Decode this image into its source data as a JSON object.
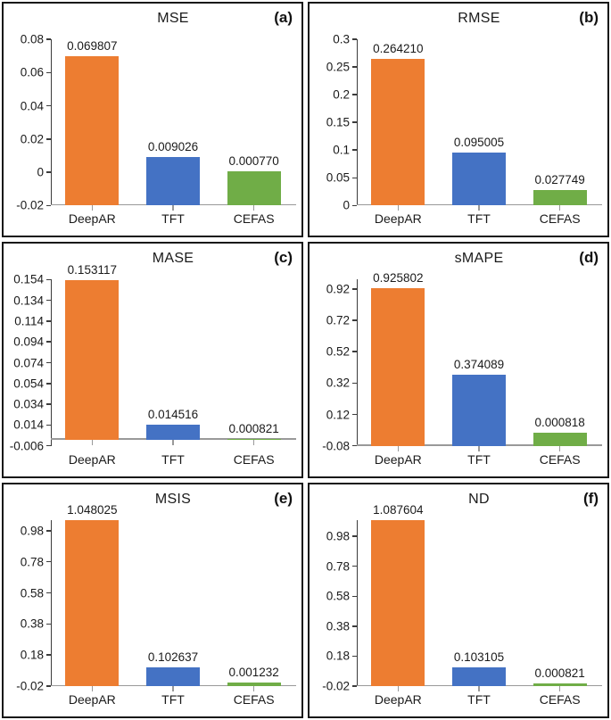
{
  "figure": {
    "background": "#ffffff",
    "panel_border_color": "#161616",
    "text_color": "#1a1a1a",
    "y_axis_color": "#3c3c3c",
    "x_axis_color": "#999999",
    "categories": [
      "DeepAR",
      "TFT",
      "CEFAS"
    ],
    "bar_colors": [
      "#ED7D31",
      "#4472C4",
      "#70AD47"
    ]
  },
  "chart_data": [
    {
      "type": "bar",
      "panel_label": "(a)",
      "title": "MSE",
      "categories": [
        "DeepAR",
        "TFT",
        "CEFAS"
      ],
      "values": [
        0.069807,
        0.009026,
        0.00077
      ],
      "bar_labels": [
        "0.069807",
        "0.009026",
        "0.000770"
      ],
      "ylim": [
        -0.02,
        0.08
      ],
      "baseline": -0.02,
      "yticks": [
        -0.02,
        0,
        0.02,
        0.04,
        0.06,
        0.08
      ],
      "ytick_labels": [
        "-0.02",
        "0",
        "0.02",
        "0.04",
        "0.06",
        "0.08"
      ],
      "grid": false,
      "legend": false
    },
    {
      "type": "bar",
      "panel_label": "(b)",
      "title": "RMSE",
      "categories": [
        "DeepAR",
        "TFT",
        "CEFAS"
      ],
      "values": [
        0.26421,
        0.095005,
        0.027749
      ],
      "bar_labels": [
        "0.264210",
        "0.095005",
        "0.027749"
      ],
      "ylim": [
        0,
        0.3
      ],
      "baseline": 0,
      "yticks": [
        0,
        0.05,
        0.1,
        0.15,
        0.2,
        0.25,
        0.3
      ],
      "ytick_labels": [
        "0",
        "0.05",
        "0.1",
        "0.15",
        "0.2",
        "0.25",
        "0.3"
      ],
      "grid": false,
      "legend": false
    },
    {
      "type": "bar",
      "panel_label": "(c)",
      "title": "MASE",
      "categories": [
        "DeepAR",
        "TFT",
        "CEFAS"
      ],
      "values": [
        0.153117,
        0.014516,
        0.000821
      ],
      "bar_labels": [
        "0.153117",
        "0.014516",
        "0.000821"
      ],
      "ylim": [
        -0.006,
        0.154
      ],
      "baseline": 0,
      "yticks": [
        -0.006,
        0.014,
        0.034,
        0.054,
        0.074,
        0.094,
        0.114,
        0.134,
        0.154
      ],
      "ytick_labels": [
        "-0.006",
        "0.014",
        "0.034",
        "0.054",
        "0.074",
        "0.094",
        "0.114",
        "0.134",
        "0.154"
      ],
      "grid": false,
      "legend": false
    },
    {
      "type": "bar",
      "panel_label": "(d)",
      "title": "sMAPE",
      "categories": [
        "DeepAR",
        "TFT",
        "CEFAS"
      ],
      "values": [
        0.925802,
        0.374089,
        0.000818
      ],
      "bar_labels": [
        "0.925802",
        "0.374089",
        "0.000818"
      ],
      "ylim": [
        -0.08,
        0.98
      ],
      "baseline": -0.08,
      "yticks": [
        -0.08,
        0.12,
        0.32,
        0.52,
        0.72,
        0.92
      ],
      "ytick_labels": [
        "-0.08",
        "0.12",
        "0.32",
        "0.52",
        "0.72",
        "0.92"
      ],
      "grid": false,
      "legend": false
    },
    {
      "type": "bar",
      "panel_label": "(e)",
      "title": "MSIS",
      "categories": [
        "DeepAR",
        "TFT",
        "CEFAS"
      ],
      "values": [
        1.048025,
        0.102637,
        0.001232
      ],
      "bar_labels": [
        "1.048025",
        "0.102637",
        "0.001232"
      ],
      "ylim": [
        -0.02,
        1.05
      ],
      "baseline": -0.02,
      "yticks": [
        -0.02,
        0.18,
        0.38,
        0.58,
        0.78,
        0.98
      ],
      "ytick_labels": [
        "-0.02",
        "0.18",
        "0.38",
        "0.58",
        "0.78",
        "0.98"
      ],
      "grid": false,
      "legend": false
    },
    {
      "type": "bar",
      "panel_label": "(f)",
      "title": "ND",
      "categories": [
        "DeepAR",
        "TFT",
        "CEFAS"
      ],
      "values": [
        1.087604,
        0.103105,
        0.000821
      ],
      "bar_labels": [
        "1.087604",
        "0.103105",
        "0.000821"
      ],
      "ylim": [
        -0.02,
        1.09
      ],
      "baseline": -0.02,
      "yticks": [
        -0.02,
        0.18,
        0.38,
        0.58,
        0.78,
        0.98
      ],
      "ytick_labels": [
        "-0.02",
        "0.18",
        "0.38",
        "0.58",
        "0.78",
        "0.98"
      ],
      "grid": false,
      "legend": false
    }
  ]
}
